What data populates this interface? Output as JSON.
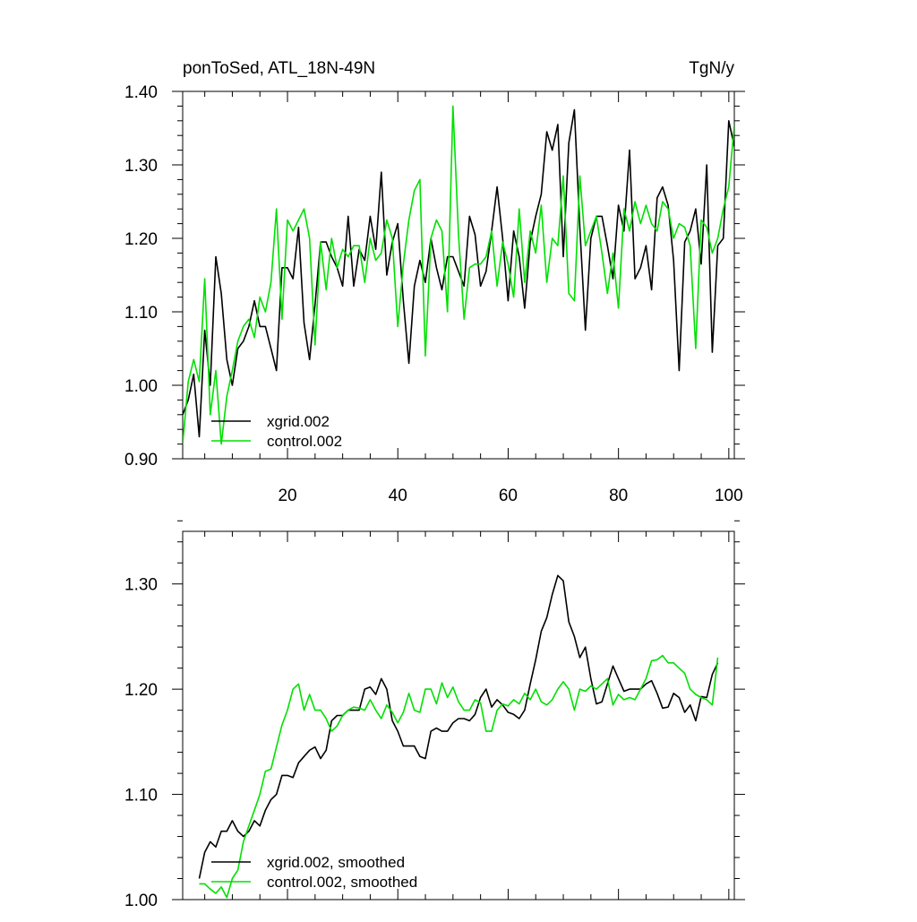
{
  "chart_data": [
    {
      "type": "line",
      "title": "ponToSed, ATL_18N-49N",
      "units": "TgN/y",
      "xlabel": "",
      "ylabel": "",
      "xlim": [
        1,
        101
      ],
      "ylim": [
        0.9,
        1.4
      ],
      "x_major_ticks": [
        20,
        40,
        60,
        80,
        100
      ],
      "y_major_ticks": [
        0.9,
        1.0,
        1.1,
        1.2,
        1.3,
        1.4
      ],
      "y_tick_labels": [
        "0.90",
        "1.00",
        "1.10",
        "1.20",
        "1.30",
        "1.40"
      ],
      "x_tick_labels": [
        "20",
        "40",
        "60",
        "80",
        "100"
      ],
      "legend_position": "bottom-left",
      "series": [
        {
          "name": "xgrid.002",
          "color": "#000000",
          "x": [
            1,
            2,
            3,
            4,
            5,
            6,
            7,
            8,
            9,
            10,
            11,
            12,
            13,
            14,
            15,
            16,
            17,
            18,
            19,
            20,
            21,
            22,
            23,
            24,
            25,
            26,
            27,
            28,
            29,
            30,
            31,
            32,
            33,
            34,
            35,
            36,
            37,
            38,
            39,
            40,
            41,
            42,
            43,
            44,
            45,
            46,
            47,
            48,
            49,
            50,
            51,
            52,
            53,
            54,
            55,
            56,
            57,
            58,
            59,
            60,
            61,
            62,
            63,
            64,
            65,
            66,
            67,
            68,
            69,
            70,
            71,
            72,
            73,
            74,
            75,
            76,
            77,
            78,
            79,
            80,
            81,
            82,
            83,
            84,
            85,
            86,
            87,
            88,
            89,
            90,
            91,
            92,
            93,
            94,
            95,
            96,
            97,
            98,
            99,
            100,
            101
          ],
          "values": [
            0.96,
            0.98,
            1.015,
            0.93,
            1.075,
            1.0,
            1.175,
            1.125,
            1.035,
            1.0,
            1.05,
            1.06,
            1.08,
            1.115,
            1.08,
            1.08,
            1.05,
            1.02,
            1.16,
            1.16,
            1.145,
            1.215,
            1.085,
            1.035,
            1.11,
            1.195,
            1.195,
            1.175,
            1.16,
            1.135,
            1.23,
            1.135,
            1.185,
            1.17,
            1.23,
            1.185,
            1.29,
            1.15,
            1.195,
            1.22,
            1.115,
            1.03,
            1.135,
            1.17,
            1.14,
            1.2,
            1.16,
            1.13,
            1.175,
            1.175,
            1.155,
            1.135,
            1.23,
            1.205,
            1.135,
            1.155,
            1.21,
            1.27,
            1.2,
            1.115,
            1.21,
            1.175,
            1.105,
            1.195,
            1.23,
            1.26,
            1.345,
            1.32,
            1.355,
            1.175,
            1.33,
            1.375,
            1.215,
            1.075,
            1.2,
            1.23,
            1.23,
            1.19,
            1.145,
            1.245,
            1.21,
            1.32,
            1.145,
            1.16,
            1.19,
            1.13,
            1.255,
            1.27,
            1.245,
            1.17,
            1.02,
            1.195,
            1.21,
            1.24,
            1.165,
            1.3,
            1.045,
            1.19,
            1.2,
            1.36,
            1.325
          ]
        },
        {
          "name": "control.002",
          "color": "#00e000",
          "x": [
            1,
            2,
            3,
            4,
            5,
            6,
            7,
            8,
            9,
            10,
            11,
            12,
            13,
            14,
            15,
            16,
            17,
            18,
            19,
            20,
            21,
            22,
            23,
            24,
            25,
            26,
            27,
            28,
            29,
            30,
            31,
            32,
            33,
            34,
            35,
            36,
            37,
            38,
            39,
            40,
            41,
            42,
            43,
            44,
            45,
            46,
            47,
            48,
            49,
            50,
            51,
            52,
            53,
            54,
            55,
            56,
            57,
            58,
            59,
            60,
            61,
            62,
            63,
            64,
            65,
            66,
            67,
            68,
            69,
            70,
            71,
            72,
            73,
            74,
            75,
            76,
            77,
            78,
            79,
            80,
            81,
            82,
            83,
            84,
            85,
            86,
            87,
            88,
            89,
            90,
            91,
            92,
            93,
            94,
            95,
            96,
            97,
            98,
            99,
            100,
            101
          ],
          "values": [
            0.92,
            1.005,
            1.035,
            1.005,
            1.145,
            0.96,
            1.02,
            0.92,
            0.985,
            1.02,
            1.06,
            1.08,
            1.09,
            1.065,
            1.12,
            1.1,
            1.14,
            1.24,
            1.09,
            1.225,
            1.21,
            1.225,
            1.24,
            1.2,
            1.055,
            1.195,
            1.13,
            1.2,
            1.16,
            1.185,
            1.175,
            1.19,
            1.19,
            1.14,
            1.2,
            1.17,
            1.18,
            1.225,
            1.2,
            1.08,
            1.165,
            1.225,
            1.265,
            1.28,
            1.04,
            1.2,
            1.225,
            1.21,
            1.1,
            1.38,
            1.205,
            1.09,
            1.16,
            1.165,
            1.165,
            1.175,
            1.21,
            1.135,
            1.195,
            1.165,
            1.12,
            1.24,
            1.14,
            1.21,
            1.18,
            1.245,
            1.14,
            1.2,
            1.19,
            1.285,
            1.125,
            1.115,
            1.285,
            1.19,
            1.21,
            1.23,
            1.18,
            1.125,
            1.18,
            1.105,
            1.24,
            1.21,
            1.25,
            1.22,
            1.245,
            1.22,
            1.21,
            1.25,
            1.24,
            1.2,
            1.22,
            1.215,
            1.19,
            1.05,
            1.225,
            1.215,
            1.18,
            1.2,
            1.24,
            1.27,
            1.355
          ]
        }
      ]
    },
    {
      "type": "line",
      "title": "",
      "xlabel": "",
      "ylabel": "",
      "xlim": [
        1,
        101
      ],
      "ylim": [
        1.0,
        1.35
      ],
      "x_major_ticks": [
        20,
        40,
        60,
        80,
        100
      ],
      "y_major_ticks": [
        1.0,
        1.1,
        1.2,
        1.3
      ],
      "y_tick_labels": [
        "1.00",
        "1.10",
        "1.20",
        "1.30"
      ],
      "legend_position": "bottom-left",
      "series": [
        {
          "name": "xgrid.002, smoothed",
          "color": "#000000",
          "x": [
            4,
            5,
            6,
            7,
            8,
            9,
            10,
            11,
            12,
            13,
            14,
            15,
            16,
            17,
            18,
            19,
            20,
            21,
            22,
            23,
            24,
            25,
            26,
            27,
            28,
            29,
            30,
            31,
            32,
            33,
            34,
            35,
            36,
            37,
            38,
            39,
            40,
            41,
            42,
            43,
            44,
            45,
            46,
            47,
            48,
            49,
            50,
            51,
            52,
            53,
            54,
            55,
            56,
            57,
            58,
            59,
            60,
            61,
            62,
            63,
            64,
            65,
            66,
            67,
            68,
            69,
            70,
            71,
            72,
            73,
            74,
            75,
            76,
            77,
            78,
            79,
            80,
            81,
            82,
            83,
            84,
            85,
            86,
            87,
            88,
            89,
            90,
            91,
            92,
            93,
            94,
            95,
            96,
            97,
            98
          ],
          "values": [
            1.02,
            1.045,
            1.055,
            1.05,
            1.065,
            1.065,
            1.075,
            1.065,
            1.06,
            1.065,
            1.075,
            1.07,
            1.085,
            1.095,
            1.1,
            1.118,
            1.118,
            1.116,
            1.13,
            1.136,
            1.142,
            1.145,
            1.134,
            1.142,
            1.17,
            1.175,
            1.175,
            1.18,
            1.18,
            1.18,
            1.2,
            1.202,
            1.195,
            1.21,
            1.2,
            1.17,
            1.16,
            1.146,
            1.146,
            1.146,
            1.136,
            1.134,
            1.16,
            1.163,
            1.16,
            1.16,
            1.168,
            1.172,
            1.172,
            1.17,
            1.176,
            1.192,
            1.2,
            1.183,
            1.19,
            1.185,
            1.178,
            1.176,
            1.172,
            1.18,
            1.205,
            1.228,
            1.255,
            1.268,
            1.29,
            1.308,
            1.303,
            1.264,
            1.25,
            1.23,
            1.24,
            1.21,
            1.186,
            1.188,
            1.205,
            1.222,
            1.21,
            1.198,
            1.2,
            1.2,
            1.2,
            1.205,
            1.208,
            1.196,
            1.182,
            1.183,
            1.196,
            1.192,
            1.178,
            1.185,
            1.17,
            1.193,
            1.192,
            1.214,
            1.225
          ]
        },
        {
          "name": "control.002, smoothed",
          "color": "#00e000",
          "x": [
            4,
            5,
            6,
            7,
            8,
            9,
            10,
            11,
            12,
            13,
            14,
            15,
            16,
            17,
            18,
            19,
            20,
            21,
            22,
            23,
            24,
            25,
            26,
            27,
            28,
            29,
            30,
            31,
            32,
            33,
            34,
            35,
            36,
            37,
            38,
            39,
            40,
            41,
            42,
            43,
            44,
            45,
            46,
            47,
            48,
            49,
            50,
            51,
            52,
            53,
            54,
            55,
            56,
            57,
            58,
            59,
            60,
            61,
            62,
            63,
            64,
            65,
            66,
            67,
            68,
            69,
            70,
            71,
            72,
            73,
            74,
            75,
            76,
            77,
            78,
            79,
            80,
            81,
            82,
            83,
            84,
            85,
            86,
            87,
            88,
            89,
            90,
            91,
            92,
            93,
            94,
            95,
            96,
            97,
            98
          ],
          "values": [
            1.015,
            1.015,
            1.01,
            1.006,
            1.012,
            1.002,
            1.02,
            1.028,
            1.055,
            1.07,
            1.085,
            1.1,
            1.122,
            1.124,
            1.145,
            1.166,
            1.18,
            1.2,
            1.205,
            1.18,
            1.195,
            1.18,
            1.18,
            1.172,
            1.16,
            1.165,
            1.175,
            1.18,
            1.183,
            1.182,
            1.18,
            1.19,
            1.18,
            1.172,
            1.185,
            1.178,
            1.168,
            1.178,
            1.196,
            1.18,
            1.178,
            1.2,
            1.2,
            1.186,
            1.206,
            1.192,
            1.202,
            1.188,
            1.18,
            1.18,
            1.19,
            1.187,
            1.16,
            1.16,
            1.18,
            1.186,
            1.184,
            1.19,
            1.186,
            1.196,
            1.19,
            1.2,
            1.188,
            1.185,
            1.19,
            1.2,
            1.207,
            1.2,
            1.18,
            1.2,
            1.198,
            1.203,
            1.2,
            1.205,
            1.21,
            1.185,
            1.195,
            1.19,
            1.192,
            1.19,
            1.2,
            1.21,
            1.227,
            1.228,
            1.232,
            1.225,
            1.225,
            1.22,
            1.215,
            1.2,
            1.195,
            1.192,
            1.19,
            1.185,
            1.23
          ]
        }
      ]
    }
  ]
}
